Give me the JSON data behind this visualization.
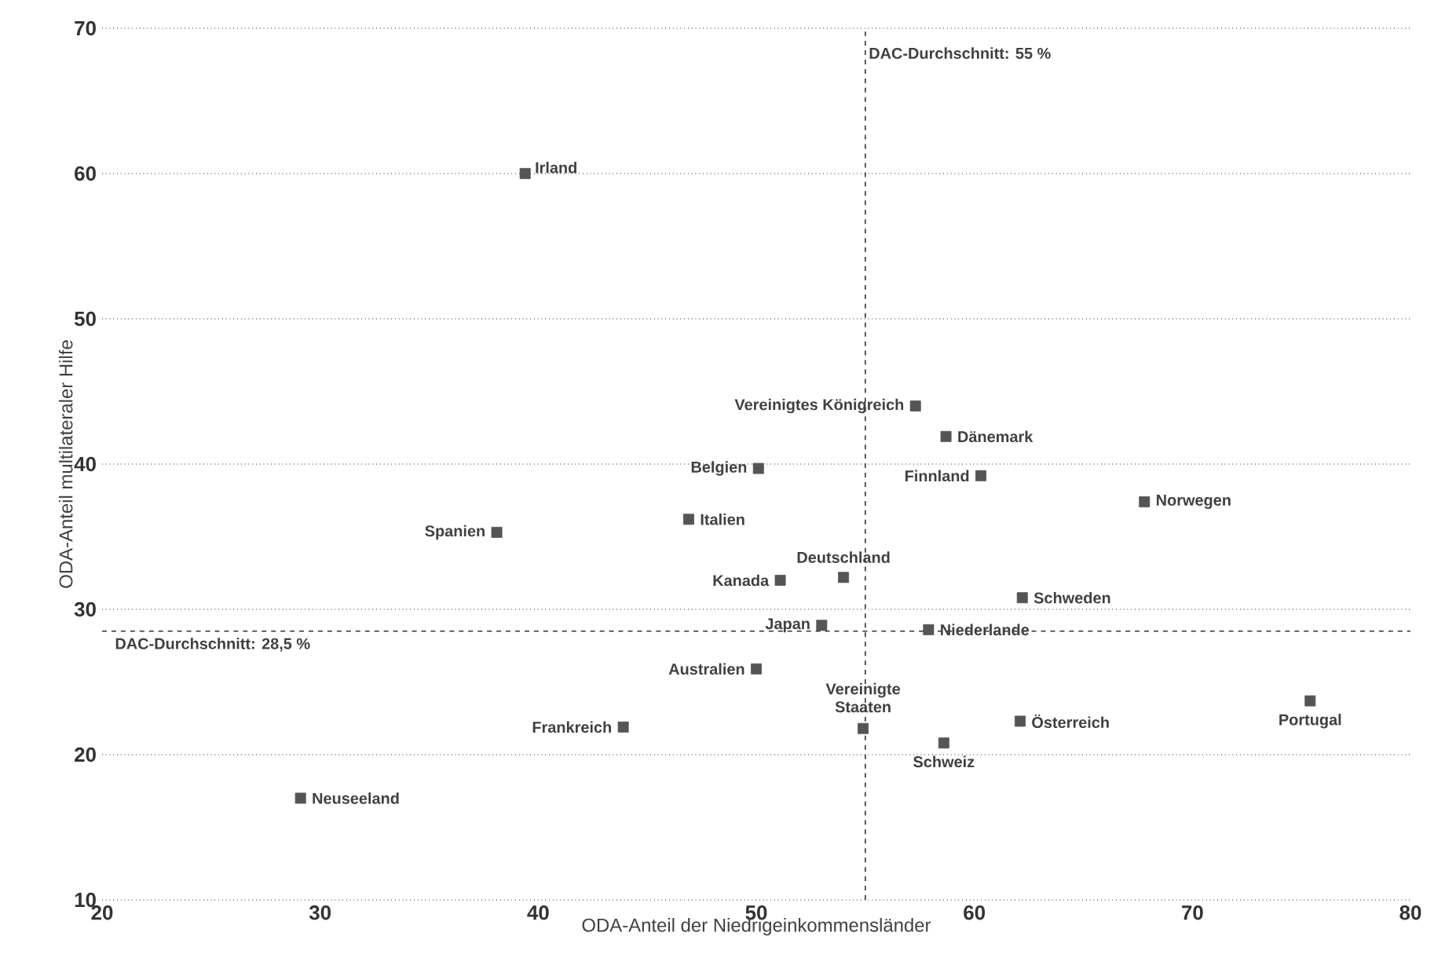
{
  "chart_data": {
    "type": "scatter",
    "xlabel": "ODA-Anteil der Niedrigeinkommensländer",
    "ylabel": "ODA-Anteil multilateraler Hilfe",
    "xlim": [
      20,
      80
    ],
    "ylim": [
      10,
      70
    ],
    "xticks": [
      20,
      30,
      40,
      50,
      60,
      70,
      80
    ],
    "yticks": [
      10,
      20,
      30,
      40,
      50,
      60,
      70
    ],
    "grid": "y",
    "marker": "square",
    "ref_lines": [
      {
        "axis": "x",
        "value": 55,
        "label": "DAC-Durchschnitt: 55 %",
        "color": "#333333",
        "line_style": "dashed"
      },
      {
        "axis": "y",
        "value": 28.5,
        "label": "DAC-Durchschnitt: 28,5 %",
        "color": "#333333",
        "line_style": "dashed"
      }
    ],
    "series": [
      {
        "name": "Irland",
        "color": "#555555",
        "x": [
          39.4
        ],
        "values": [
          60
        ]
      },
      {
        "name": "Vereinigtes Königreich",
        "color": "#555555",
        "x": [
          57.3
        ],
        "values": [
          44.0
        ]
      },
      {
        "name": "Dänemark",
        "color": "#555555",
        "x": [
          58.7
        ],
        "values": [
          41.9
        ]
      },
      {
        "name": "Belgien",
        "color": "#555555",
        "x": [
          50.1
        ],
        "values": [
          39.7
        ]
      },
      {
        "name": "Finnland",
        "color": "#555555",
        "x": [
          60.3
        ],
        "values": [
          39.2
        ]
      },
      {
        "name": "Norwegen",
        "color": "#555555",
        "x": [
          67.8
        ],
        "values": [
          37.4
        ]
      },
      {
        "name": "Italien",
        "color": "#555555",
        "x": [
          46.9
        ],
        "values": [
          36.2
        ]
      },
      {
        "name": "Spanien",
        "color": "#555555",
        "x": [
          38.1
        ],
        "values": [
          35.3
        ]
      },
      {
        "name": "Kanada",
        "color": "#555555",
        "x": [
          51.1
        ],
        "values": [
          32.0
        ]
      },
      {
        "name": "Deutschland",
        "color": "#555555",
        "x": [
          54.0
        ],
        "values": [
          32.2
        ]
      },
      {
        "name": "Schweden",
        "color": "#555555",
        "x": [
          62.2
        ],
        "values": [
          30.8
        ]
      },
      {
        "name": "Japan",
        "color": "#555555",
        "x": [
          53.0
        ],
        "values": [
          28.9
        ]
      },
      {
        "name": "Niederlande",
        "color": "#555555",
        "x": [
          57.9
        ],
        "values": [
          28.6
        ]
      },
      {
        "name": "Australien",
        "color": "#555555",
        "x": [
          50.0
        ],
        "values": [
          25.9
        ]
      },
      {
        "name": "Vereinigte Staaten",
        "color": "#555555",
        "x": [
          54.9
        ],
        "values": [
          21.8
        ]
      },
      {
        "name": "Österreich",
        "color": "#555555",
        "x": [
          62.1
        ],
        "values": [
          22.3
        ]
      },
      {
        "name": "Portugal",
        "color": "#555555",
        "x": [
          75.4
        ],
        "values": [
          23.7
        ]
      },
      {
        "name": "Schweiz",
        "color": "#555555",
        "x": [
          58.6
        ],
        "values": [
          20.8
        ]
      },
      {
        "name": "Frankreich",
        "color": "#555555",
        "x": [
          43.9
        ],
        "values": [
          21.9
        ]
      },
      {
        "name": "Neuseeland",
        "color": "#555555",
        "x": [
          29.1
        ],
        "values": [
          17.0
        ]
      }
    ]
  }
}
